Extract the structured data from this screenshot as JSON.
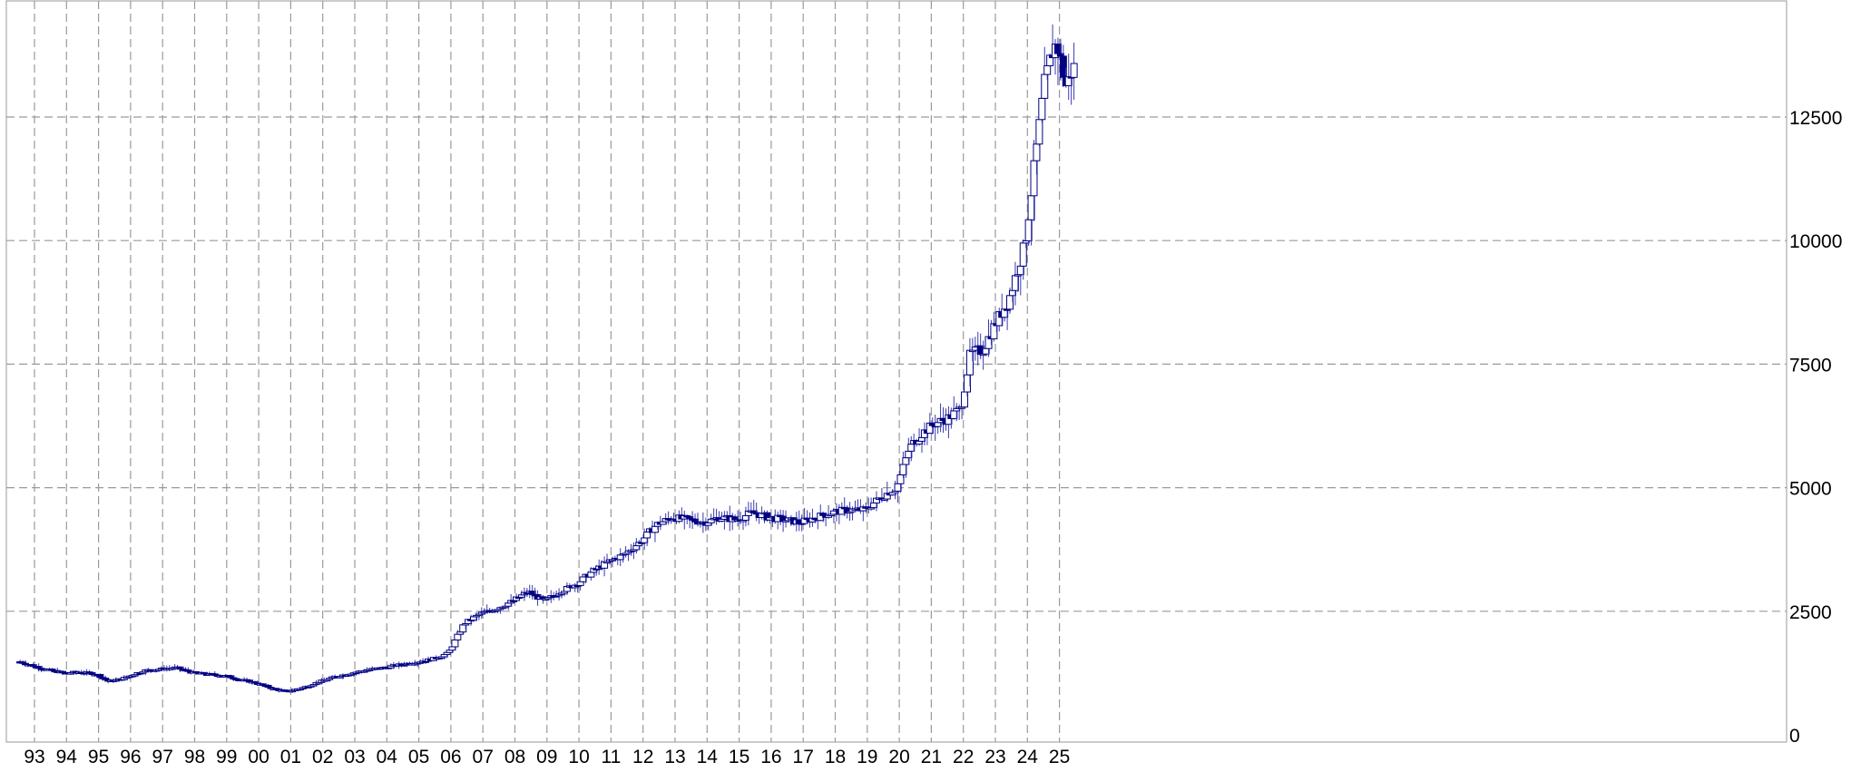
{
  "chart_data": {
    "type": "candlestick",
    "title": "",
    "xlabel": "",
    "ylabel": "",
    "ylim": [
      0,
      14500
    ],
    "grid": true,
    "yticks": [
      0,
      2500,
      5000,
      7500,
      10000,
      12500
    ],
    "x_tick_labels": [
      "93",
      "94",
      "95",
      "96",
      "97",
      "98",
      "99",
      "00",
      "01",
      "02",
      "03",
      "04",
      "05",
      "06",
      "07",
      "08",
      "09",
      "10",
      "11",
      "12",
      "13",
      "14",
      "15",
      "16",
      "17",
      "18",
      "19",
      "20",
      "21",
      "22",
      "23",
      "24",
      "25"
    ],
    "x_start_year": 1992.55,
    "colors": {
      "up_body": "#ffffff",
      "down_body": "#000080",
      "outline": "#000080",
      "wick": "#3a3ab0",
      "grid": "#9a9a9a",
      "frame": "#9a9a9a"
    },
    "anchors": [
      [
        1992.6,
        1480
      ],
      [
        1993.4,
        1330
      ],
      [
        1994.0,
        1250
      ],
      [
        1994.5,
        1270
      ],
      [
        1995.0,
        1230
      ],
      [
        1995.4,
        1080
      ],
      [
        1995.8,
        1130
      ],
      [
        1996.5,
        1300
      ],
      [
        1997.0,
        1330
      ],
      [
        1997.5,
        1360
      ],
      [
        1998.0,
        1260
      ],
      [
        1998.6,
        1220
      ],
      [
        1999.0,
        1200
      ],
      [
        1999.5,
        1120
      ],
      [
        2000.0,
        1050
      ],
      [
        2000.6,
        920
      ],
      [
        2001.0,
        880
      ],
      [
        2001.5,
        960
      ],
      [
        2002.0,
        1080
      ],
      [
        2002.5,
        1180
      ],
      [
        2003.0,
        1250
      ],
      [
        2003.5,
        1320
      ],
      [
        2004.0,
        1360
      ],
      [
        2004.5,
        1420
      ],
      [
        2005.0,
        1470
      ],
      [
        2005.5,
        1530
      ],
      [
        2006.0,
        1650
      ],
      [
        2006.5,
        2250
      ],
      [
        2007.0,
        2450
      ],
      [
        2007.5,
        2550
      ],
      [
        2008.0,
        2700
      ],
      [
        2008.5,
        2900
      ],
      [
        2009.0,
        2700
      ],
      [
        2009.5,
        2900
      ],
      [
        2010.0,
        3050
      ],
      [
        2010.5,
        3300
      ],
      [
        2011.0,
        3500
      ],
      [
        2011.5,
        3650
      ],
      [
        2012.0,
        3900
      ],
      [
        2012.5,
        4250
      ],
      [
        2013.0,
        4400
      ],
      [
        2013.5,
        4350
      ],
      [
        2014.0,
        4300
      ],
      [
        2014.5,
        4400
      ],
      [
        2015.0,
        4350
      ],
      [
        2015.5,
        4500
      ],
      [
        2016.0,
        4400
      ],
      [
        2016.5,
        4350
      ],
      [
        2017.0,
        4300
      ],
      [
        2017.5,
        4400
      ],
      [
        2018.0,
        4500
      ],
      [
        2018.5,
        4550
      ],
      [
        2019.0,
        4550
      ],
      [
        2019.5,
        4800
      ],
      [
        2020.0,
        5000
      ],
      [
        2020.4,
        5800
      ],
      [
        2020.8,
        6100
      ],
      [
        2021.2,
        6300
      ],
      [
        2021.6,
        6400
      ],
      [
        2022.0,
        6600
      ],
      [
        2022.3,
        7700
      ],
      [
        2022.7,
        7800
      ],
      [
        2023.0,
        8200
      ],
      [
        2023.5,
        8800
      ],
      [
        2024.0,
        9900
      ],
      [
        2024.3,
        11500
      ],
      [
        2024.6,
        13100
      ],
      [
        2024.85,
        13800
      ],
      [
        2025.0,
        14000
      ],
      [
        2025.3,
        13100
      ],
      [
        2025.5,
        13500
      ]
    ]
  }
}
